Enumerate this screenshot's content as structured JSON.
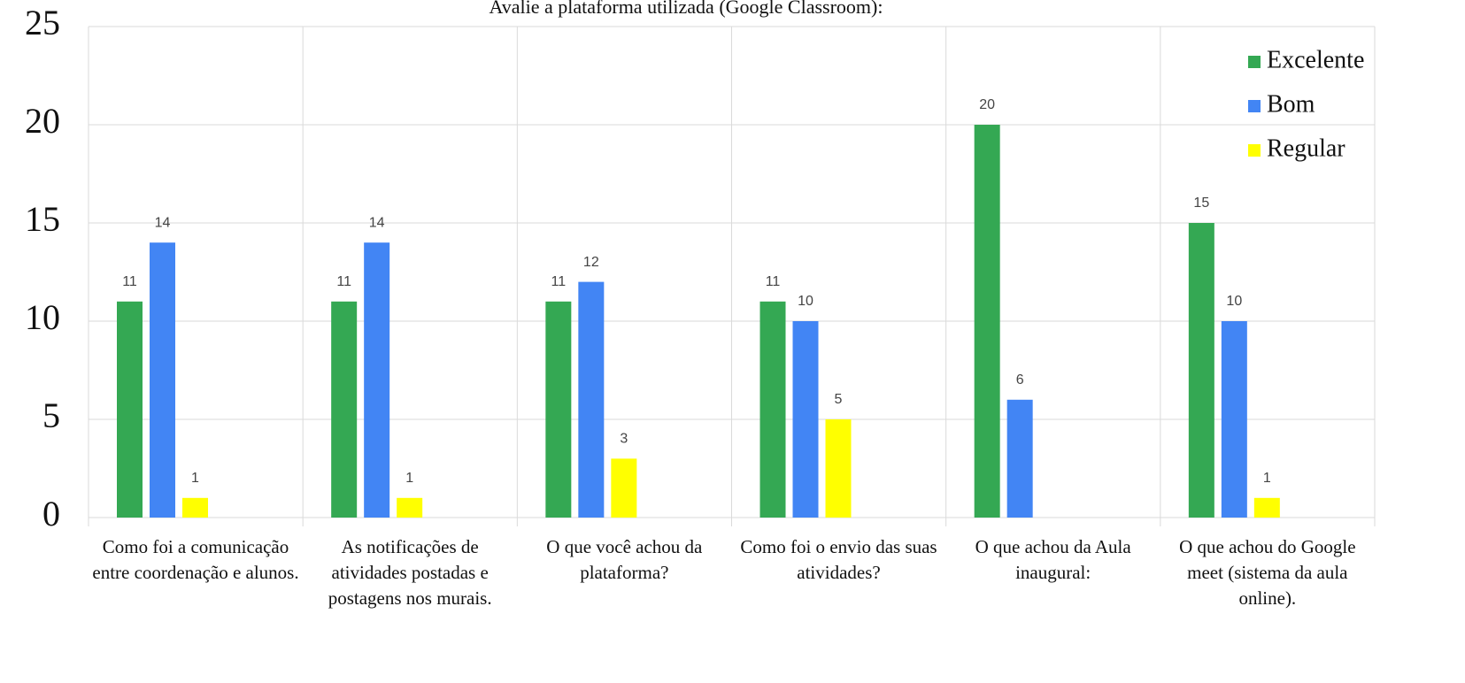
{
  "chart_data": {
    "type": "bar",
    "title": "Avalie a plataforma utilizada (Google Classroom):",
    "categories": [
      "Como foi a comunicação entre coordenação e alunos.",
      "As notificações de atividades postadas e postagens nos murais.",
      "O que você achou da plataforma?",
      "Como foi o envio das suas atividades?",
      "O que achou da Aula inaugural:",
      "O que achou do Google meet (sistema da aula online)."
    ],
    "series": [
      {
        "name": "Excelente",
        "color": "#34a853",
        "values": [
          11,
          11,
          11,
          11,
          20,
          15
        ]
      },
      {
        "name": "Bom",
        "color": "#4285f4",
        "values": [
          14,
          14,
          12,
          10,
          6,
          10
        ]
      },
      {
        "name": "Regular",
        "color": "#ffff00",
        "values": [
          1,
          1,
          3,
          5,
          null,
          1
        ]
      }
    ],
    "ylim": [
      0,
      25
    ],
    "yticks": [
      0,
      5,
      10,
      15,
      20,
      25
    ],
    "grid": true,
    "legend": "top-right"
  }
}
